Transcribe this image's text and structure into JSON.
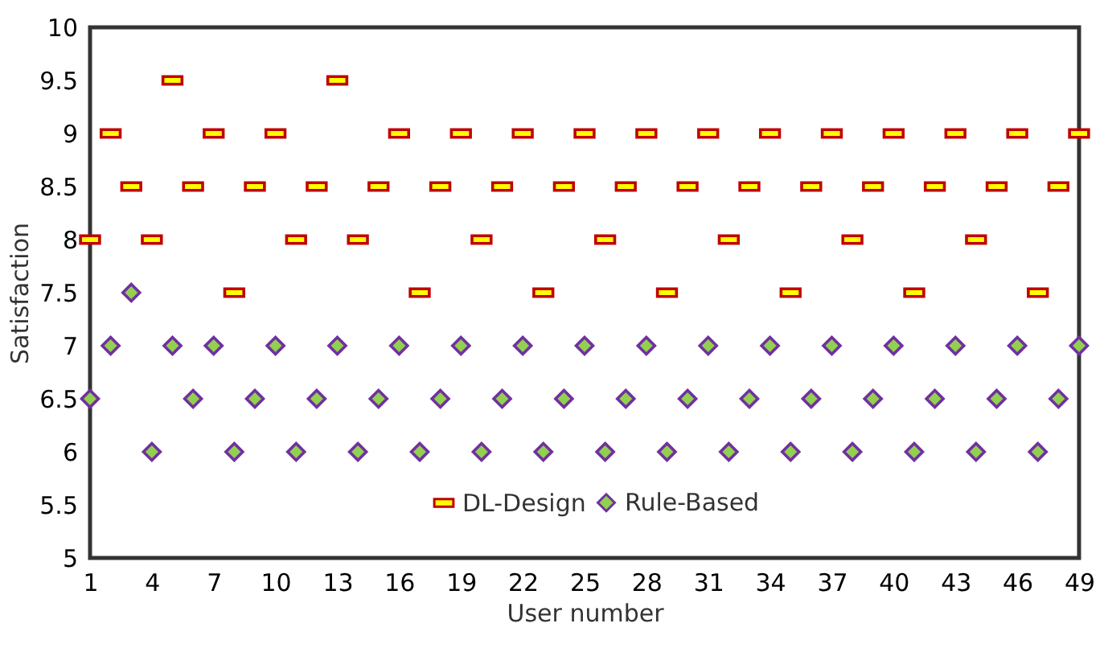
{
  "chart_data": {
    "type": "scatter",
    "xlabel": "User number",
    "ylabel": "Satisfaction",
    "x": [
      1,
      2,
      3,
      4,
      5,
      6,
      7,
      8,
      9,
      10,
      11,
      12,
      13,
      14,
      15,
      16,
      17,
      18,
      19,
      20,
      21,
      22,
      23,
      24,
      25,
      26,
      27,
      28,
      29,
      30,
      31,
      32,
      33,
      34,
      35,
      36,
      37,
      38,
      39,
      40,
      41,
      42,
      43,
      44,
      45,
      46,
      47,
      48,
      49
    ],
    "series": [
      {
        "name": "DL-Design",
        "color": "#c00000",
        "marker": "square",
        "values": [
          8,
          9,
          8.5,
          8,
          9.5,
          8.5,
          9,
          7.5,
          8.5,
          9,
          8,
          8.5,
          9.5,
          8,
          8.5,
          9,
          7.5,
          8.5,
          9,
          8,
          8.5,
          9,
          7.5,
          8.5,
          9,
          8,
          8.5,
          9,
          7.5,
          8.5,
          9,
          8,
          8.5,
          9,
          7.5,
          8.5,
          9,
          8,
          8.5,
          9,
          7.5,
          8.5,
          9,
          8,
          8.5,
          9,
          7.5,
          8.5,
          9
        ]
      },
      {
        "name": "Rule-Based",
        "color": "#7030a0",
        "marker": "diamond",
        "values": [
          6.5,
          7,
          7.5,
          6,
          7,
          6.5,
          7,
          6,
          6.5,
          7,
          6,
          6.5,
          7,
          6,
          6.5,
          7,
          6,
          6.5,
          7,
          6,
          6.5,
          7,
          6,
          6.5,
          7,
          6,
          6.5,
          7,
          6,
          6.5,
          7,
          6,
          6.5,
          7,
          6,
          6.5,
          7,
          6,
          6.5,
          7,
          6,
          6.5,
          7,
          6,
          6.5,
          7,
          6,
          6.5,
          7
        ]
      }
    ],
    "xlim": [
      1,
      49
    ],
    "xticks": [
      1,
      4,
      7,
      10,
      13,
      16,
      19,
      22,
      25,
      28,
      31,
      34,
      37,
      40,
      43,
      46,
      49
    ],
    "ylim": [
      5,
      10
    ],
    "yticks": [
      5,
      5.5,
      6,
      6.5,
      7,
      7.5,
      8,
      8.5,
      9,
      9.5,
      10
    ],
    "grid": false,
    "legend": "bottom"
  }
}
